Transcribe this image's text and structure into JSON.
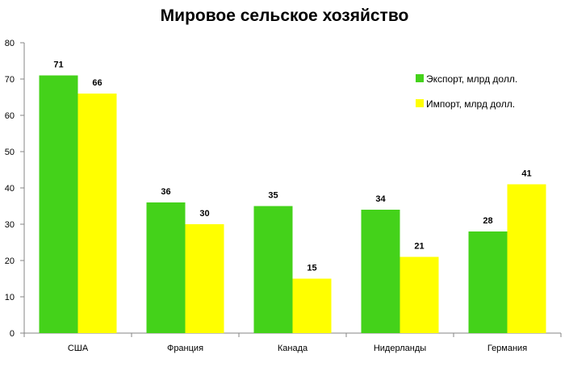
{
  "chart_data": {
    "type": "bar",
    "title": "Мировое сельское хозяйство",
    "xlabel": "",
    "ylabel": "",
    "categories": [
      "США",
      "Франция",
      "Канада",
      "Нидерланды",
      "Германия"
    ],
    "series": [
      {
        "name": "Экспорт, млрд долл.",
        "values": [
          71,
          36,
          35,
          34,
          28
        ],
        "color": "#44D21A"
      },
      {
        "name": "Импорт, млрд долл.",
        "values": [
          66,
          30,
          15,
          21,
          41
        ],
        "color": "#FFFF00"
      }
    ],
    "ylim": [
      0,
      80
    ],
    "yticks": [
      0,
      10,
      20,
      30,
      40,
      50,
      60,
      70,
      80
    ],
    "grid": false,
    "legend_position": "top-right",
    "data_labels": true
  }
}
